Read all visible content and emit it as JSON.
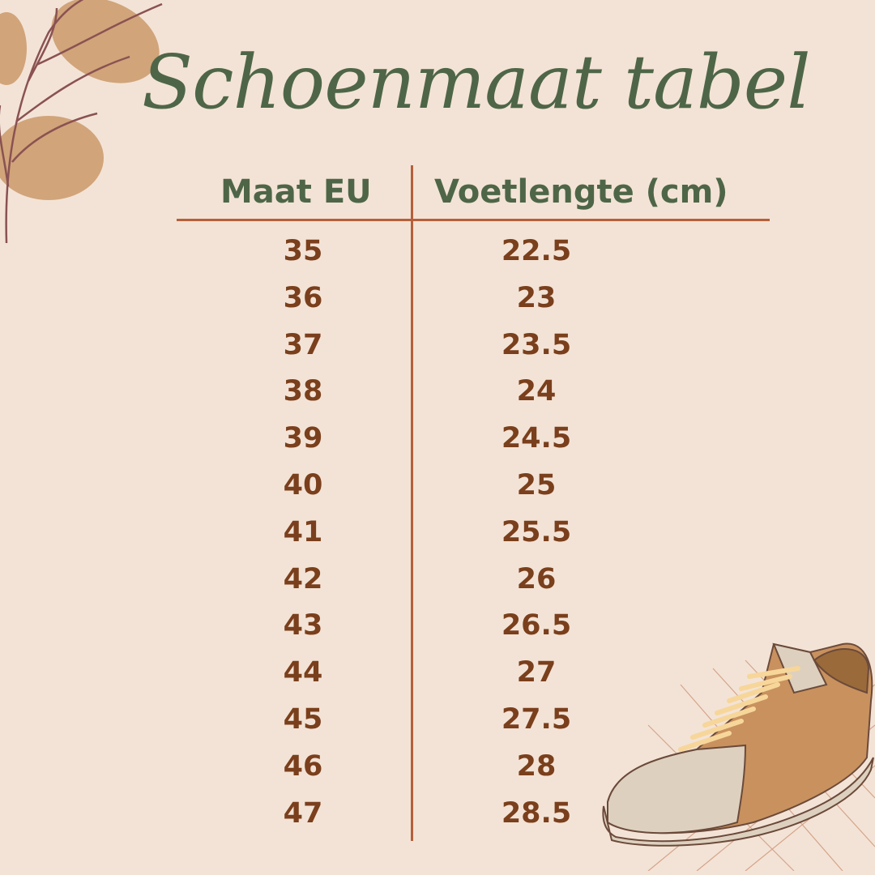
{
  "title": "Schoenmaat tabel",
  "table": {
    "headers": [
      "Maat EU",
      "Voetlengte (cm)"
    ],
    "rows": [
      [
        "35",
        "22.5"
      ],
      [
        "36",
        "23"
      ],
      [
        "37",
        "23.5"
      ],
      [
        "38",
        "24"
      ],
      [
        "39",
        "24.5"
      ],
      [
        "40",
        "25"
      ],
      [
        "41",
        "25.5"
      ],
      [
        "42",
        "26"
      ],
      [
        "43",
        "26.5"
      ],
      [
        "44",
        "27"
      ],
      [
        "45",
        "27.5"
      ],
      [
        "46",
        "28"
      ],
      [
        "47",
        "28.5"
      ]
    ]
  },
  "colors": {
    "background": "#f3e3d6",
    "heading": "#4e6647",
    "values": "#7a3f1c",
    "lines": "#b5603a",
    "leaf": "#d1a47a"
  }
}
